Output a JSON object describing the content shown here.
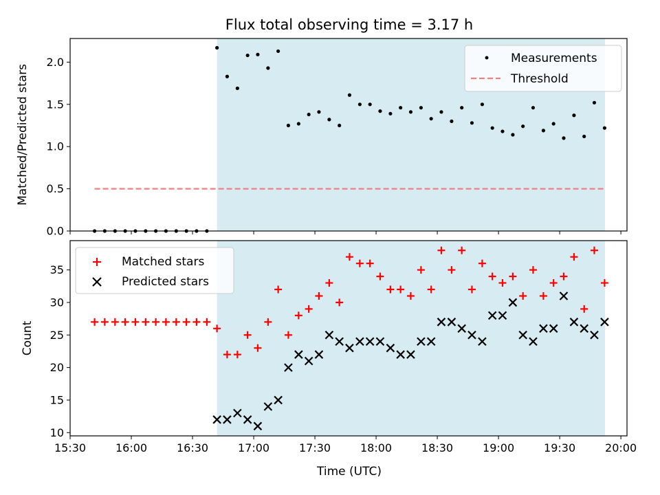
{
  "chart_data": {
    "title": "Flux total observing time = 3.17 h",
    "xlabel": "Time (UTC)",
    "x_unit": "hours since midnight UTC",
    "xlim": [
      15.5,
      20.05
    ],
    "x_ticks": [
      15.5,
      16.0,
      16.5,
      17.0,
      17.5,
      18.0,
      18.5,
      19.0,
      19.5,
      20.0
    ],
    "x_tick_labels": [
      "15:30",
      "16:00",
      "16:30",
      "17:00",
      "17:30",
      "18:00",
      "18:30",
      "19:00",
      "19:30",
      "20:00"
    ],
    "shaded_span": [
      16.7,
      19.87
    ],
    "shade_color": "#add8e6",
    "times": [
      15.7,
      15.783,
      15.867,
      15.95,
      16.033,
      16.117,
      16.2,
      16.283,
      16.367,
      16.45,
      16.533,
      16.617,
      16.7,
      16.783,
      16.867,
      16.95,
      17.033,
      17.117,
      17.2,
      17.283,
      17.367,
      17.45,
      17.533,
      17.617,
      17.7,
      17.783,
      17.867,
      17.95,
      18.033,
      18.117,
      18.2,
      18.283,
      18.367,
      18.45,
      18.533,
      18.617,
      18.7,
      18.783,
      18.867,
      18.95,
      19.033,
      19.117,
      19.2,
      19.283,
      19.367,
      19.45,
      19.533,
      19.617,
      19.7,
      19.783,
      19.867
    ],
    "charts": [
      {
        "type": "scatter",
        "ylabel": "Matched/Predicted stars",
        "ylim": [
          0,
          2.28
        ],
        "y_ticks": [
          0.0,
          0.5,
          1.0,
          1.5,
          2.0
        ],
        "y_tick_labels": [
          "0.0",
          "0.5",
          "1.0",
          "1.5",
          "2.0"
        ],
        "series": [
          {
            "name": "Measurements",
            "marker": "dot",
            "color": "#000000",
            "values": [
              0,
              0,
              0,
              0,
              0,
              0,
              0,
              0,
              0,
              0,
              0,
              0,
              2.17,
              1.83,
              1.69,
              2.08,
              2.09,
              1.93,
              2.13,
              1.25,
              1.27,
              1.38,
              1.41,
              1.32,
              1.25,
              1.61,
              1.5,
              1.5,
              1.42,
              1.39,
              1.46,
              1.41,
              1.46,
              1.33,
              1.41,
              1.3,
              1.46,
              1.28,
              1.5,
              1.22,
              1.18,
              1.14,
              1.24,
              1.46,
              1.19,
              1.27,
              1.1,
              1.37,
              1.12,
              1.52,
              1.22
            ]
          }
        ],
        "threshold": {
          "name": "Threshold",
          "value": 0.5,
          "x_range": [
            15.7,
            19.87
          ],
          "color": "#f08080"
        },
        "legend": [
          "Measurements",
          "Threshold"
        ],
        "legend_loc": "upper right"
      },
      {
        "type": "scatter",
        "ylabel": "Count",
        "ylim": [
          9.5,
          39.5
        ],
        "y_ticks": [
          10,
          15,
          20,
          25,
          30,
          35
        ],
        "y_tick_labels": [
          "10",
          "15",
          "20",
          "25",
          "30",
          "35"
        ],
        "series": [
          {
            "name": "Matched stars",
            "marker": "plus",
            "color": "#ff0000",
            "values": [
              27,
              27,
              27,
              27,
              27,
              27,
              27,
              27,
              27,
              27,
              27,
              27,
              26,
              22,
              22,
              25,
              23,
              27,
              32,
              25,
              28,
              29,
              31,
              33,
              30,
              37,
              36,
              36,
              34,
              32,
              32,
              31,
              35,
              32,
              38,
              35,
              38,
              32,
              36,
              34,
              33,
              34,
              31,
              35,
              31,
              33,
              34,
              37,
              29,
              38,
              33
            ]
          },
          {
            "name": "Predicted stars",
            "marker": "x",
            "color": "#000000",
            "x_from_index": 12,
            "values": [
              12,
              12,
              13,
              12,
              11,
              14,
              15,
              20,
              22,
              21,
              22,
              25,
              24,
              23,
              24,
              24,
              24,
              23,
              22,
              22,
              24,
              24,
              27,
              27,
              26,
              25,
              24,
              28,
              28,
              30,
              25,
              24,
              26,
              26,
              31,
              27,
              26,
              25,
              27
            ]
          }
        ],
        "legend": [
          "Matched stars",
          "Predicted stars"
        ],
        "legend_loc": "upper left"
      }
    ]
  }
}
